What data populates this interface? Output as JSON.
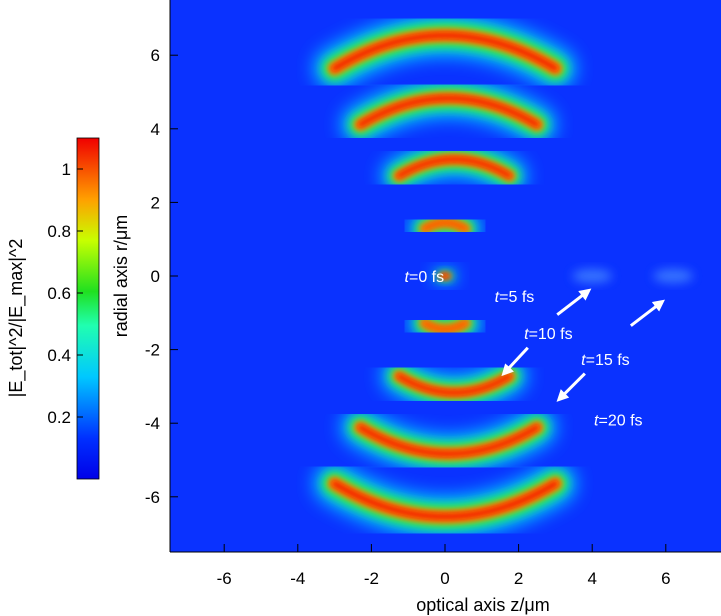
{
  "chart_data": {
    "type": "heatmap",
    "title": "",
    "xlabel": "optical axis z/μm",
    "ylabel": "radial axis r/μm",
    "xlim": [
      -7.5,
      7.5
    ],
    "ylim": [
      -7.5,
      7.5
    ],
    "x_ticks": [
      "-6",
      "-4",
      "-2",
      "0",
      "2",
      "4",
      "6"
    ],
    "y_ticks": [
      "6",
      "4",
      "2",
      "0",
      "-2",
      "-4",
      "-6"
    ],
    "colorbar": {
      "label": "|E_tot|^2/|E_max|^2",
      "range": [
        0,
        1.1
      ],
      "ticks": [
        "1",
        "0.8",
        "0.6",
        "0.4",
        "0.2"
      ],
      "colormap": "jet"
    },
    "colors": {
      "background": "#0a32ff",
      "peak": "#e60000"
    },
    "rings": [
      {
        "r": 0.0,
        "z_center": 0.0,
        "half_length": 0.25,
        "peak": 1.0
      },
      {
        "r": 1.35,
        "z_center": 0.0,
        "half_length": 0.55,
        "peak": 0.75
      },
      {
        "r": 2.9,
        "z_center": 0.25,
        "half_length": 1.5,
        "peak": 0.85
      },
      {
        "r": 4.4,
        "z_center": 0.1,
        "half_length": 2.4,
        "peak": 0.88
      },
      {
        "r": 6.0,
        "z_center": 0.0,
        "half_length": 3.0,
        "peak": 0.9
      }
    ],
    "annotations": [
      {
        "italic": "t",
        "text": "=0 fs",
        "z": -1.1,
        "r": 0.0
      },
      {
        "italic": "t",
        "text": "=5 fs",
        "z": 1.35,
        "r": -0.55
      },
      {
        "italic": "t",
        "text": "=10 fs",
        "z": 2.15,
        "r": -1.55
      },
      {
        "italic": "t",
        "text": "=15 fs",
        "z": 3.7,
        "r": -2.25
      },
      {
        "italic": "t",
        "text": "=20 fs",
        "z": 4.05,
        "r": -3.9
      }
    ],
    "arrows": [
      {
        "from": [
          3.05,
          -1.05
        ],
        "to": [
          3.9,
          -0.4
        ]
      },
      {
        "from": [
          5.05,
          -1.35
        ],
        "to": [
          5.9,
          -0.7
        ]
      },
      {
        "from": [
          2.25,
          -1.95
        ],
        "to": [
          1.6,
          -2.65
        ]
      },
      {
        "from": [
          3.8,
          -2.65
        ],
        "to": [
          3.1,
          -3.35
        ]
      }
    ]
  }
}
